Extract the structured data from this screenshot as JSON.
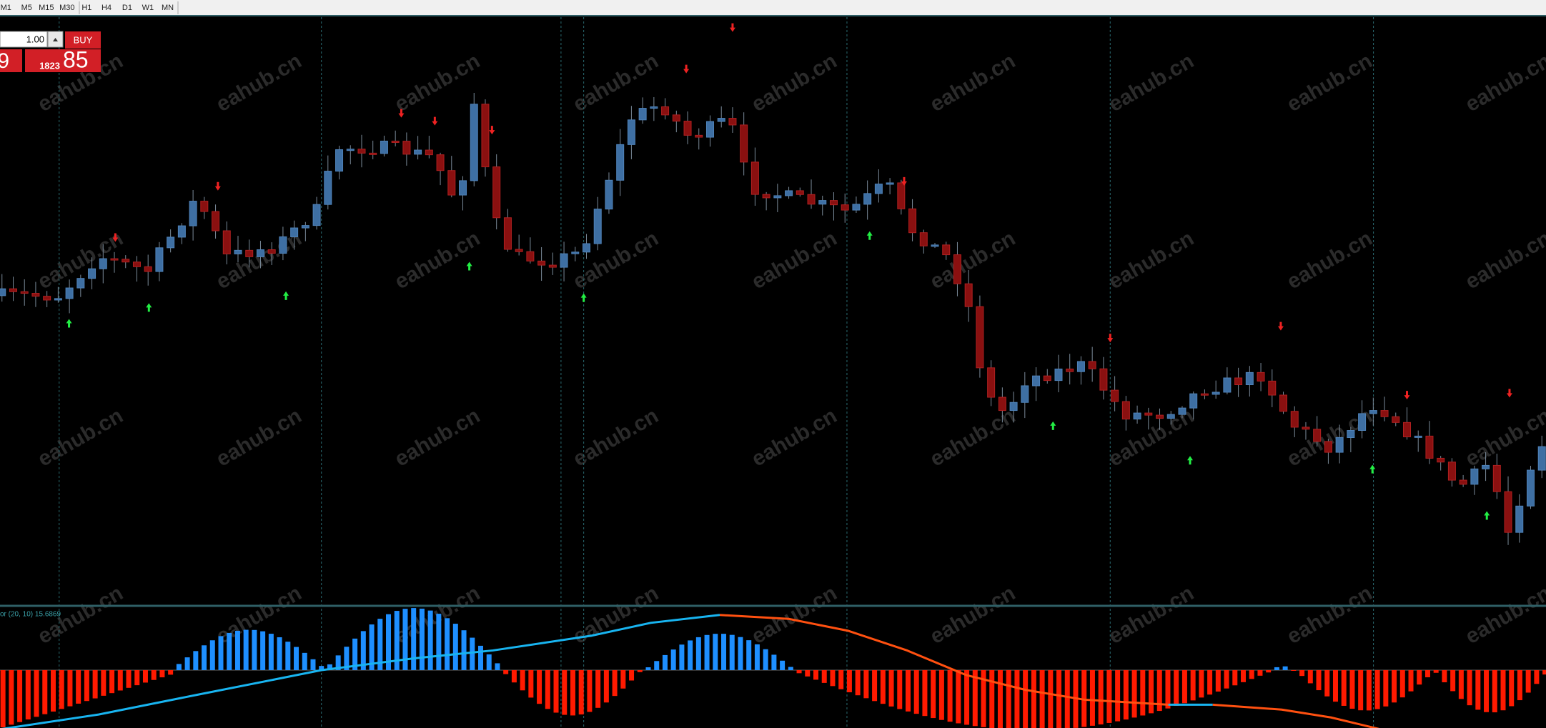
{
  "toolbar": {
    "timeframes": [
      "M1",
      "M5",
      "M15",
      "M30",
      "H1",
      "H4",
      "D1",
      "W1",
      "MN"
    ]
  },
  "trade_panel": {
    "lot": "1.00",
    "buy": "BUY",
    "bid_big": "9",
    "ask_small": "1823",
    "ask_big": "85"
  },
  "indicator": {
    "label": "or (20, 10) 15.6869"
  },
  "watermark": "eahub.cn"
}
